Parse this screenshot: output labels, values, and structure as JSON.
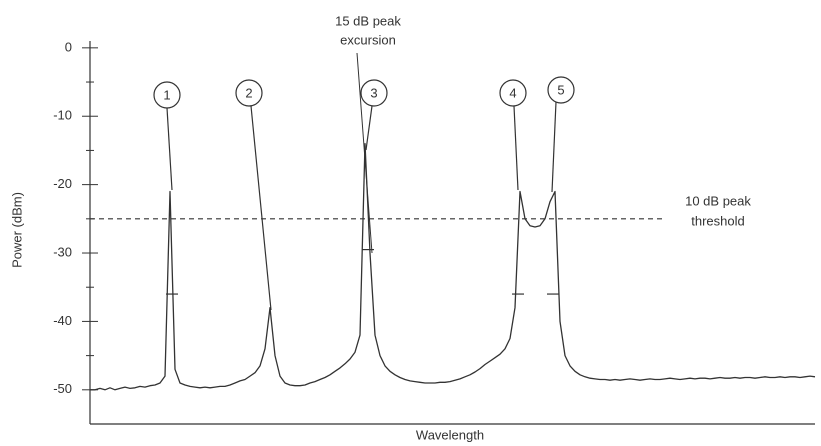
{
  "chart_data": {
    "type": "line",
    "y_label": "Power (dBm)",
    "x_label": "Wavelength",
    "ylim": [
      -55,
      1
    ],
    "yticks": [
      0,
      -10,
      -20,
      -30,
      -40,
      -50
    ],
    "color": "#333333",
    "categories": [
      null,
      null,
      null,
      null,
      null,
      null,
      null,
      null,
      null,
      null,
      null,
      null,
      null,
      null,
      null,
      null,
      null,
      null,
      null,
      null,
      null,
      null,
      null,
      null,
      null,
      null,
      null,
      null,
      null,
      null,
      null,
      null,
      null,
      null,
      null,
      null,
      null,
      null,
      null,
      null,
      null,
      null,
      null,
      null,
      null,
      null,
      null,
      null,
      null,
      null,
      null,
      null,
      null,
      null,
      null,
      null,
      null,
      null,
      null,
      null,
      null,
      null,
      null,
      null,
      null,
      null,
      null,
      null,
      null,
      null,
      null,
      null,
      null,
      null,
      null,
      null,
      null,
      null,
      null,
      null,
      null,
      null,
      null,
      null,
      null,
      null,
      null,
      null,
      null,
      null,
      null,
      null,
      null,
      null,
      null,
      null,
      null,
      null,
      null,
      null,
      null,
      null,
      null,
      null,
      null,
      null,
      null,
      null,
      null,
      null,
      null,
      null,
      null,
      null,
      null,
      null,
      null,
      null,
      null,
      null,
      null,
      null,
      null,
      null,
      null,
      null,
      null,
      null,
      null,
      null,
      null,
      null,
      null,
      null,
      null,
      null,
      null,
      null,
      null,
      null,
      null,
      null,
      null,
      null,
      null,
      null
    ],
    "values": [
      -50,
      -50,
      -49.8,
      -50,
      -49.7,
      -50,
      -49.8,
      -49.6,
      -49.8,
      -49.7,
      -49.5,
      -49.6,
      -49.4,
      -49.3,
      -49,
      -48,
      -21,
      -47,
      -49,
      -49.3,
      -49.5,
      -49.6,
      -49.7,
      -49.6,
      -49.7,
      -49.6,
      -49.5,
      -49.5,
      -49.3,
      -49,
      -48.7,
      -48.5,
      -48,
      -47.5,
      -46.5,
      -44,
      -38,
      -45,
      -48,
      -49,
      -49.3,
      -49.4,
      -49.4,
      -49.3,
      -49,
      -48.8,
      -48.5,
      -48.2,
      -47.8,
      -47.3,
      -46.8,
      -46.2,
      -45.5,
      -44.5,
      -42,
      -14,
      -30,
      -42,
      -45,
      -46.5,
      -47.3,
      -47.8,
      -48.2,
      -48.5,
      -48.7,
      -48.8,
      -48.9,
      -49,
      -49,
      -49,
      -48.9,
      -48.9,
      -48.8,
      -48.6,
      -48.4,
      -48.1,
      -47.8,
      -47.4,
      -46.9,
      -46.3,
      -45.8,
      -45.3,
      -44.8,
      -44,
      -42.5,
      -38,
      -21,
      -25,
      -26,
      -26.2,
      -26,
      -25,
      -22.5,
      -21,
      -40,
      -45,
      -46.5,
      -47.3,
      -47.8,
      -48.1,
      -48.3,
      -48.4,
      -48.5,
      -48.5,
      -48.6,
      -48.5,
      -48.6,
      -48.5,
      -48.4,
      -48.5,
      -48.6,
      -48.5,
      -48.4,
      -48.5,
      -48.5,
      -48.4,
      -48.3,
      -48.4,
      -48.5,
      -48.4,
      -48.3,
      -48.4,
      -48.3,
      -48.3,
      -48.4,
      -48.3,
      -48.2,
      -48.3,
      -48.3,
      -48.2,
      -48.3,
      -48.2,
      -48.2,
      -48.3,
      -48.2,
      -48.1,
      -48.2,
      -48.2,
      -48.1,
      -48.2,
      -48.1,
      -48.1,
      -48.2,
      -48.1,
      -48,
      -48.1
    ],
    "threshold": -25,
    "threshold_label": [
      "10 dB peak",
      "threshold"
    ],
    "excursion_label": [
      "15 dB peak",
      "excursion"
    ],
    "peak_labels": [
      "1",
      "2",
      "3",
      "4",
      "5"
    ],
    "markers": [
      -36,
      -29.5,
      -36,
      -36
    ]
  }
}
